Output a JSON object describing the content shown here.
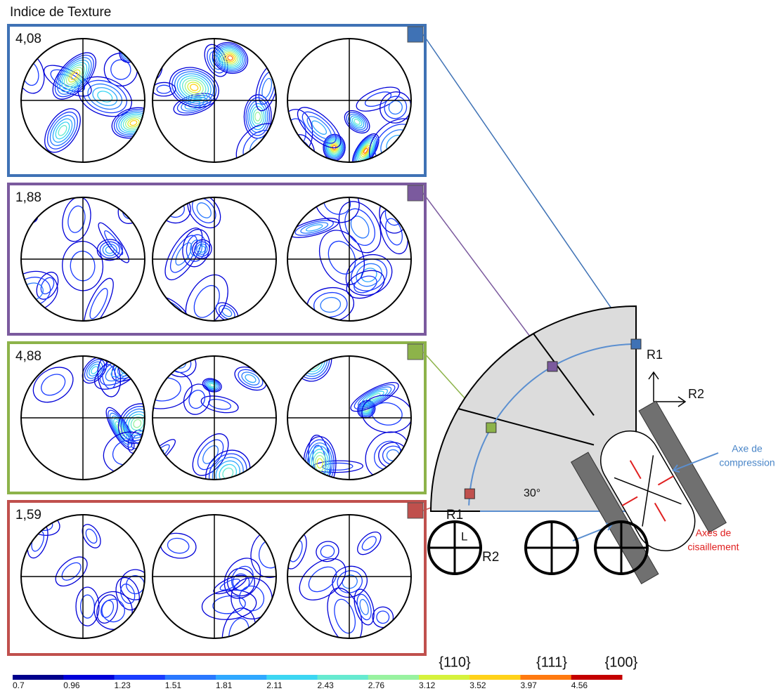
{
  "title": "Indice de Texture",
  "panels": [
    {
      "index": "4,08",
      "color": "#3f72b5"
    },
    {
      "index": "1,88",
      "color": "#7b5a9e"
    },
    {
      "index": "4,88",
      "color": "#8db34a"
    },
    {
      "index": "1,59",
      "color": "#c0504d"
    }
  ],
  "diagram": {
    "r1": "R1",
    "r2": "R2",
    "angle": "30°",
    "compression": [
      "Axe de",
      "compression"
    ],
    "shear": [
      "Axes de",
      "cisaillement"
    ]
  },
  "legend_circles": {
    "r1": "R1",
    "r2": "R2",
    "l": "L",
    "planes": [
      "{110}",
      "{111}",
      "{100}"
    ]
  },
  "colorbar": {
    "labels": [
      "0.7",
      "0.96",
      "1.23",
      "1.51",
      "1.81",
      "2.11",
      "2.43",
      "2.76",
      "3.12",
      "3.52",
      "3.97",
      "4.56"
    ],
    "colors": [
      "#00008c",
      "#0000d8",
      "#1a3cff",
      "#2a78ff",
      "#2fa8ff",
      "#3cd6f2",
      "#66ead0",
      "#98f2a0",
      "#d6f23c",
      "#ffd21a",
      "#ff7a10",
      "#c40000"
    ]
  }
}
